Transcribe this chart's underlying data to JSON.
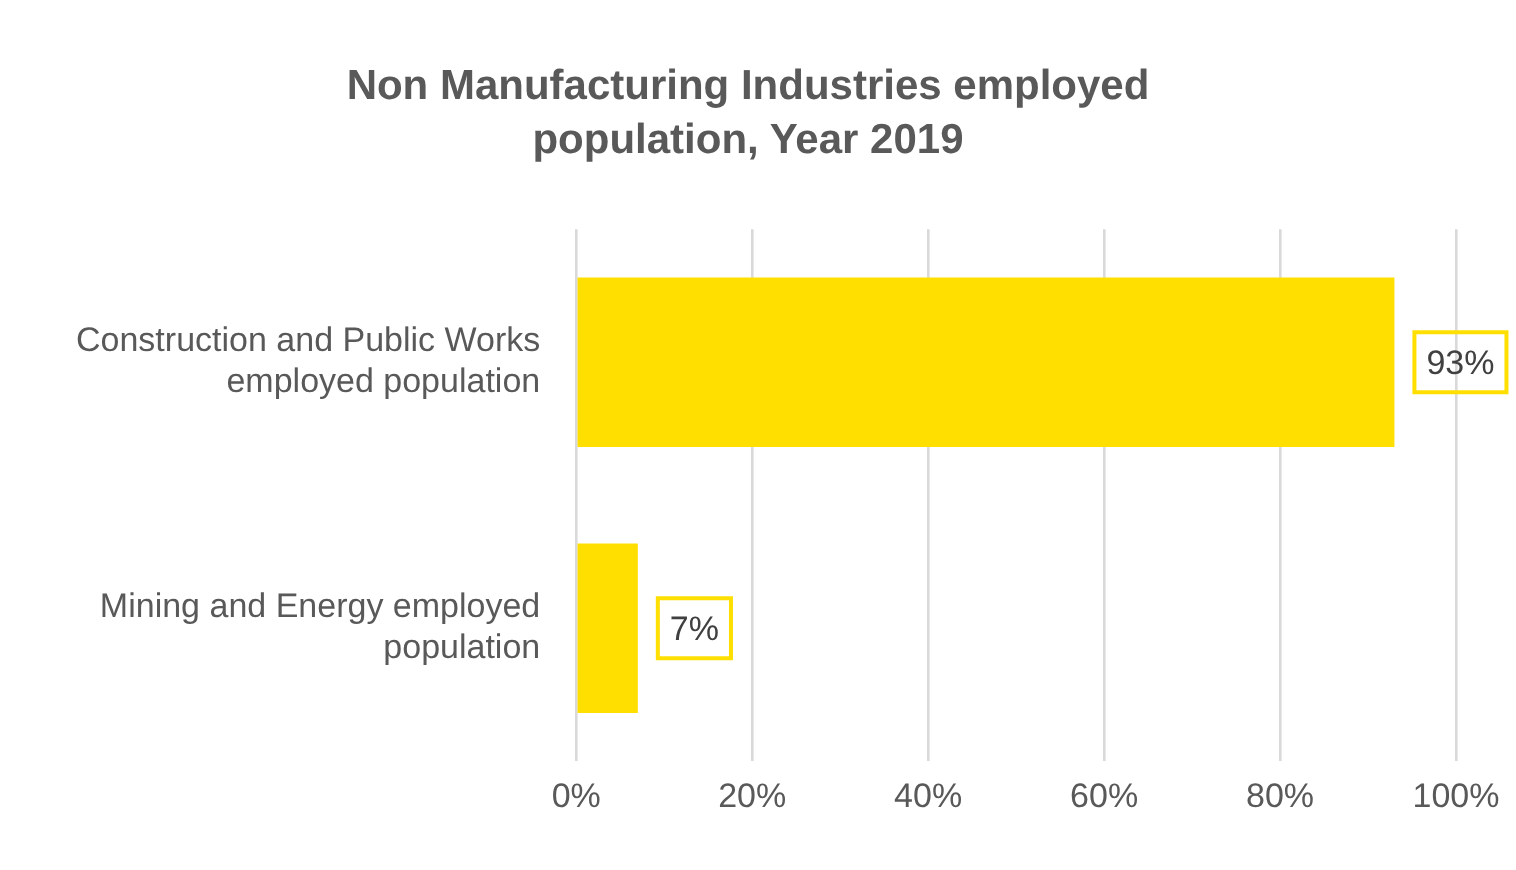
{
  "chart_data": {
    "type": "bar",
    "orientation": "horizontal",
    "title": "Non Manufacturing Industries employed population, Year 2019",
    "categories": [
      "Construction and Public Works employed population",
      "Mining and Energy employed population"
    ],
    "values": [
      93,
      7
    ],
    "color": "#ffdf00",
    "value_labels": [
      "93%",
      "7%"
    ],
    "xlim": [
      0,
      100
    ],
    "xticks": [
      {
        "value": 0,
        "label": "0%"
      },
      {
        "value": 20,
        "label": "20%"
      },
      {
        "value": 40,
        "label": "40%"
      },
      {
        "value": 60,
        "label": "60%"
      },
      {
        "value": 80,
        "label": "80%"
      },
      {
        "value": 100,
        "label": "100%"
      }
    ],
    "grid": "x",
    "legend": false
  }
}
